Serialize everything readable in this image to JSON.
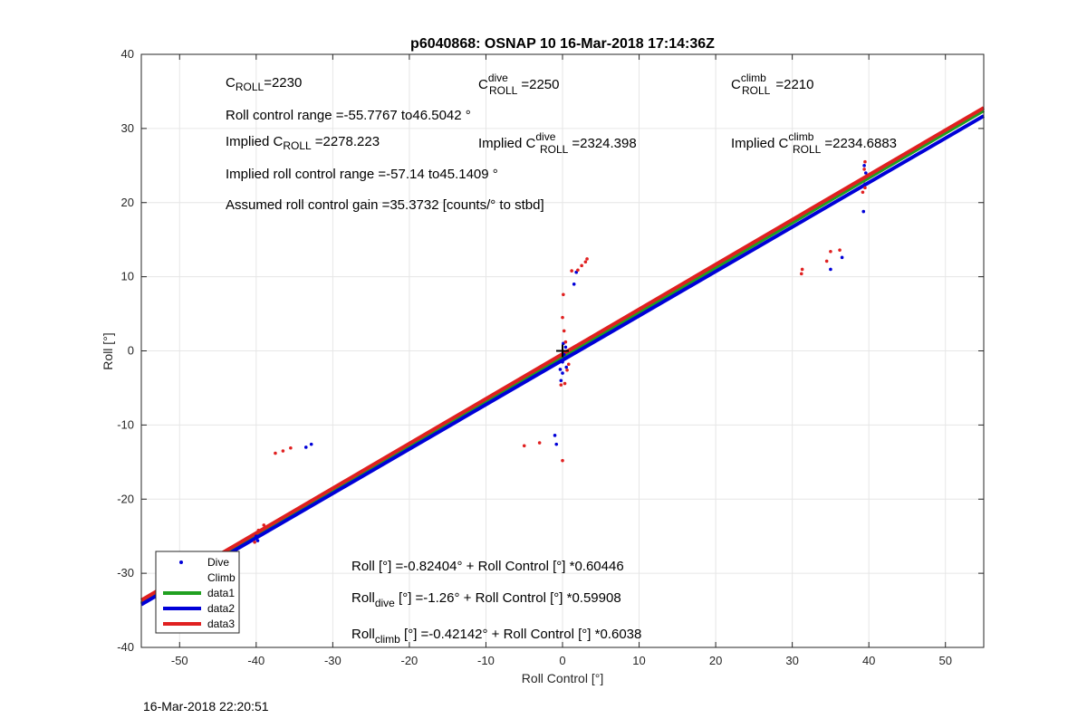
{
  "chart_data": {
    "type": "scatter",
    "title": "p6040868: OSNAP 10 16-Mar-2018 17:14:36Z",
    "xlabel": "Roll Control [°]",
    "ylabel": "Roll [°]",
    "xlim": [
      -55,
      55
    ],
    "ylim": [
      -40,
      40
    ],
    "xticks": [
      -50,
      -40,
      -30,
      -20,
      -10,
      0,
      10,
      20,
      30,
      40,
      50
    ],
    "yticks": [
      -40,
      -30,
      -20,
      -10,
      0,
      10,
      20,
      30,
      40
    ],
    "grid": true,
    "legend_position": "bottom-left",
    "series": [
      {
        "name": "Dive",
        "kind": "points",
        "color": "#0000d8",
        "points": [
          [
            -49.5,
            -28.5
          ],
          [
            -40.0,
            -25.0
          ],
          [
            -39.8,
            -25.6
          ],
          [
            -33.5,
            -13.0
          ],
          [
            -32.8,
            -12.6
          ],
          [
            -1.0,
            -11.4
          ],
          [
            -0.8,
            -12.6
          ],
          [
            -0.3,
            -2.5
          ],
          [
            0.0,
            -1.5
          ],
          [
            0.2,
            -0.5
          ],
          [
            0.4,
            0.5
          ],
          [
            0.0,
            -3.0
          ],
          [
            -0.2,
            -4.0
          ],
          [
            0.3,
            -1.0
          ],
          [
            0.1,
            1.0
          ],
          [
            0.5,
            -2.2
          ],
          [
            1.5,
            9.0
          ],
          [
            1.8,
            10.6
          ],
          [
            35.0,
            11.0
          ],
          [
            36.5,
            12.6
          ],
          [
            39.3,
            18.8
          ],
          [
            39.5,
            22.5
          ],
          [
            39.6,
            24.0
          ],
          [
            39.4,
            25.0
          ]
        ]
      },
      {
        "name": "Climb",
        "kind": "points",
        "color": "#e02020",
        "points": [
          [
            -40.2,
            -25.8
          ],
          [
            -39.7,
            -24.2
          ],
          [
            -39.0,
            -23.5
          ],
          [
            -37.5,
            -13.8
          ],
          [
            -36.5,
            -13.5
          ],
          [
            -35.5,
            -13.1
          ],
          [
            -5.0,
            -12.8
          ],
          [
            -3.0,
            -12.4
          ],
          [
            0.0,
            -14.8
          ],
          [
            0.1,
            7.6
          ],
          [
            0.0,
            4.5
          ],
          [
            0.2,
            2.7
          ],
          [
            -0.2,
            -4.6
          ],
          [
            0.3,
            -4.4
          ],
          [
            0.4,
            1.2
          ],
          [
            0.8,
            -1.8
          ],
          [
            0.6,
            -2.6
          ],
          [
            1.2,
            10.8
          ],
          [
            2.0,
            10.9
          ],
          [
            2.5,
            11.5
          ],
          [
            3.0,
            12.0
          ],
          [
            3.2,
            12.4
          ],
          [
            31.2,
            10.4
          ],
          [
            31.3,
            11.0
          ],
          [
            34.5,
            12.1
          ],
          [
            35.0,
            13.4
          ],
          [
            36.2,
            13.6
          ],
          [
            39.2,
            21.4
          ],
          [
            39.5,
            22.0
          ],
          [
            39.6,
            23.5
          ],
          [
            39.4,
            24.5
          ],
          [
            39.5,
            25.5
          ]
        ]
      },
      {
        "name": "data1",
        "kind": "fit",
        "color": "#20a020",
        "intercept": -0.82404,
        "slope": 0.60446
      },
      {
        "name": "data2",
        "kind": "fit",
        "color": "#0000d8",
        "intercept": -1.26,
        "slope": 0.59908
      },
      {
        "name": "data3",
        "kind": "fit",
        "color": "#e02020",
        "intercept": -0.42142,
        "slope": 0.6038
      }
    ],
    "center_marker": [
      0,
      0
    ]
  },
  "annotations": {
    "c_roll_base": "C",
    "c_roll_sub": "ROLL",
    "c_roll_value": "=2230",
    "c_roll_dive_base": "C",
    "c_roll_dive_sup": "dive",
    "c_roll_dive_sub": "ROLL",
    "c_roll_dive_value": "=2250",
    "c_roll_climb_base": "C",
    "c_roll_climb_sup": "climb",
    "c_roll_climb_sub": "ROLL",
    "c_roll_climb_value": "=2210",
    "roll_control_range": "Roll control range =-55.7767 to46.5042 °",
    "implied_c_roll_prefix": "Implied C",
    "implied_c_roll_sub": "ROLL",
    "implied_c_roll_value": "=2278.223",
    "implied_c_roll_dive_prefix": "Implied C",
    "implied_c_roll_dive_sup": "dive",
    "implied_c_roll_dive_sub": "ROLL",
    "implied_c_roll_dive_value": "=2324.398",
    "implied_c_roll_climb_prefix": "Implied C",
    "implied_c_roll_climb_sup": "climb",
    "implied_c_roll_climb_sub": "ROLL",
    "implied_c_roll_climb_value": "=2234.6883",
    "implied_roll_control_range": "Implied roll control range =-57.14 to45.1409 °",
    "assumed_gain": "Assumed roll control gain =35.3732 [counts/° to stbd]",
    "fit_all": "Roll [°] =-0.82404° + Roll Control [°] *0.60446",
    "fit_dive_base": "Roll",
    "fit_dive_sub": "dive",
    "fit_dive_rest": " [°] =-1.26° + Roll Control [°] *0.59908",
    "fit_climb_base": "Roll",
    "fit_climb_sub": "climb",
    "fit_climb_rest": " [°] =-0.42142° + Roll Control [°] *0.6038"
  },
  "footer": {
    "timestamp": "16-Mar-2018 22:20:51"
  }
}
